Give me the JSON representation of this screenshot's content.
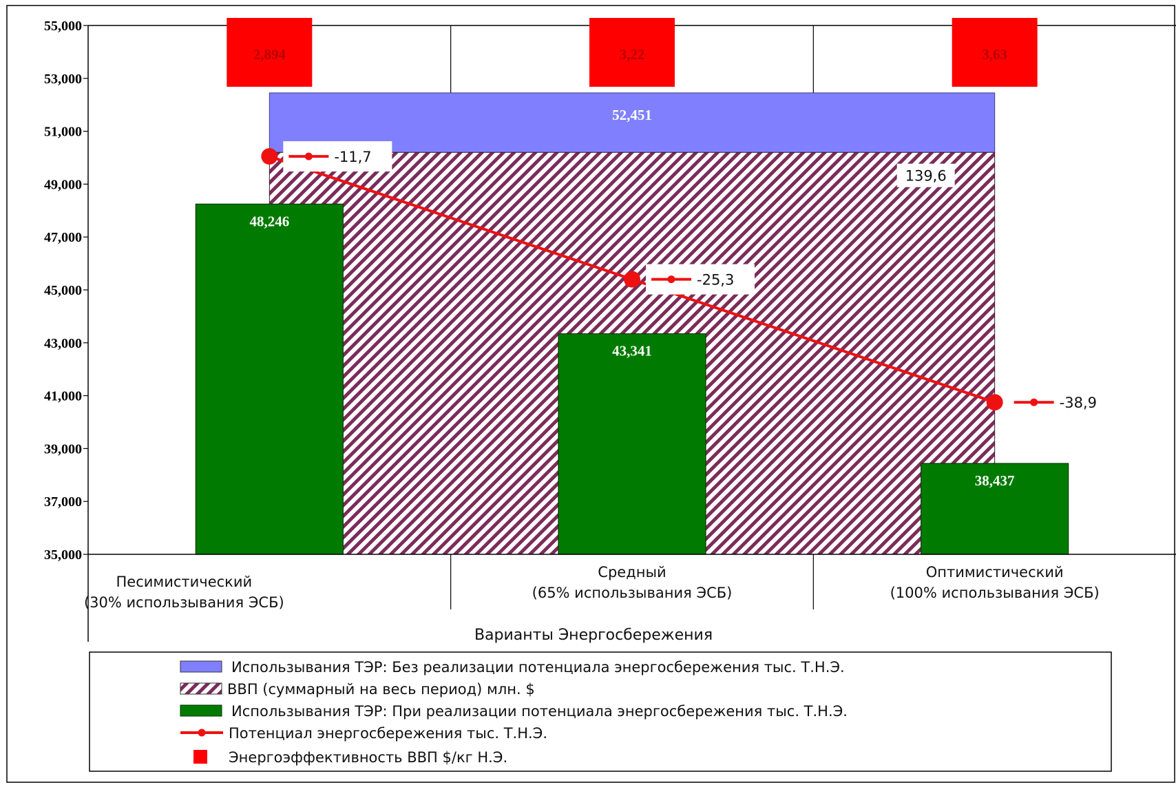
{
  "chart_data": {
    "type": "bar",
    "xlabel": "Варианты Энергосбережения",
    "ylim": [
      35000,
      55000
    ],
    "y_ticks": [
      "35,000",
      "37,000",
      "39,000",
      "41,000",
      "43,000",
      "45,000",
      "47,000",
      "49,000",
      "51,000",
      "53,000",
      "55,000"
    ],
    "y_tick_values": [
      35000,
      37000,
      39000,
      41000,
      43000,
      45000,
      47000,
      49000,
      51000,
      53000,
      55000
    ],
    "categories": [
      [
        "Песимистический",
        "(30% использывания ЭСБ)"
      ],
      [
        "Средный",
        "(65% использывания ЭСБ)"
      ],
      [
        "Оптимистический",
        "(100% использывания ЭСБ)"
      ]
    ],
    "series": [
      {
        "name": "Использывания ТЭР: Без реализации потенциала энергосбережения тыс. Т.Н.Э.",
        "type": "area",
        "value": 52451,
        "label": "52,451",
        "color": "#8080ff"
      },
      {
        "name": "ВВП (суммарный на весь период) млн. $",
        "type": "area-hatched",
        "values": [
          50200,
          50200,
          50200
        ],
        "label": "139,6",
        "color": "#7b2c5a"
      },
      {
        "name": "Использывания ТЭР: При реализации потенциала энергосбережения тыс. Т.Н.Э.",
        "type": "bar",
        "values": [
          48246,
          43341,
          38437
        ],
        "labels": [
          "48,246",
          "43,341",
          "38,437"
        ],
        "color": "#007a00"
      },
      {
        "name": "Потенциал энергосбережения тыс. Т.Н.Э.",
        "type": "line",
        "values": [
          50050,
          45400,
          40750
        ],
        "labels": [
          "-11,7",
          "-25,3",
          "-38,9"
        ],
        "color": "#ee1111"
      },
      {
        "name": "Энергоэффективность ВВП $/кг Н.Э.",
        "type": "marker",
        "labels": [
          "2,894",
          "3,22",
          "3,63"
        ],
        "color": "#ff0000"
      }
    ],
    "grid": "vertical category lines",
    "legend": "bottom"
  }
}
